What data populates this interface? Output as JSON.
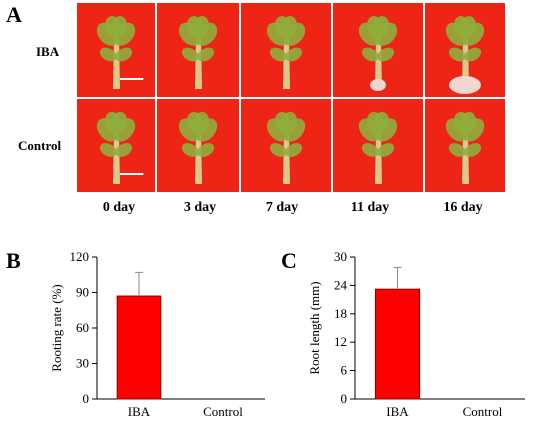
{
  "panel_labels": {
    "a": "A",
    "b": "B",
    "c": "C"
  },
  "rows": [
    "IBA",
    "Control"
  ],
  "days": [
    "0 day",
    "3 day",
    "7 day",
    "11 day",
    "16 day"
  ],
  "colors": {
    "background": "#ee2417",
    "bar": "#ff0000",
    "bar_edge": "#8b0000",
    "plant": "#8fae3c"
  },
  "chart_data": [
    {
      "type": "bar",
      "categories": [
        "IBA",
        "Control"
      ],
      "values": [
        87,
        0
      ],
      "errors": [
        20,
        0
      ],
      "ylabel": "Rooting rate (%)",
      "ylim": [
        0,
        120
      ],
      "yticks": [
        "0",
        "30",
        "60",
        "90",
        "120"
      ]
    },
    {
      "type": "bar",
      "categories": [
        "IBA",
        "Control"
      ],
      "values": [
        23.2,
        0
      ],
      "errors": [
        4.6,
        0
      ],
      "ylabel": "Root length (mm)",
      "ylim": [
        0,
        30
      ],
      "yticks": [
        "0",
        "6",
        "12",
        "18",
        "24",
        "30"
      ]
    }
  ]
}
